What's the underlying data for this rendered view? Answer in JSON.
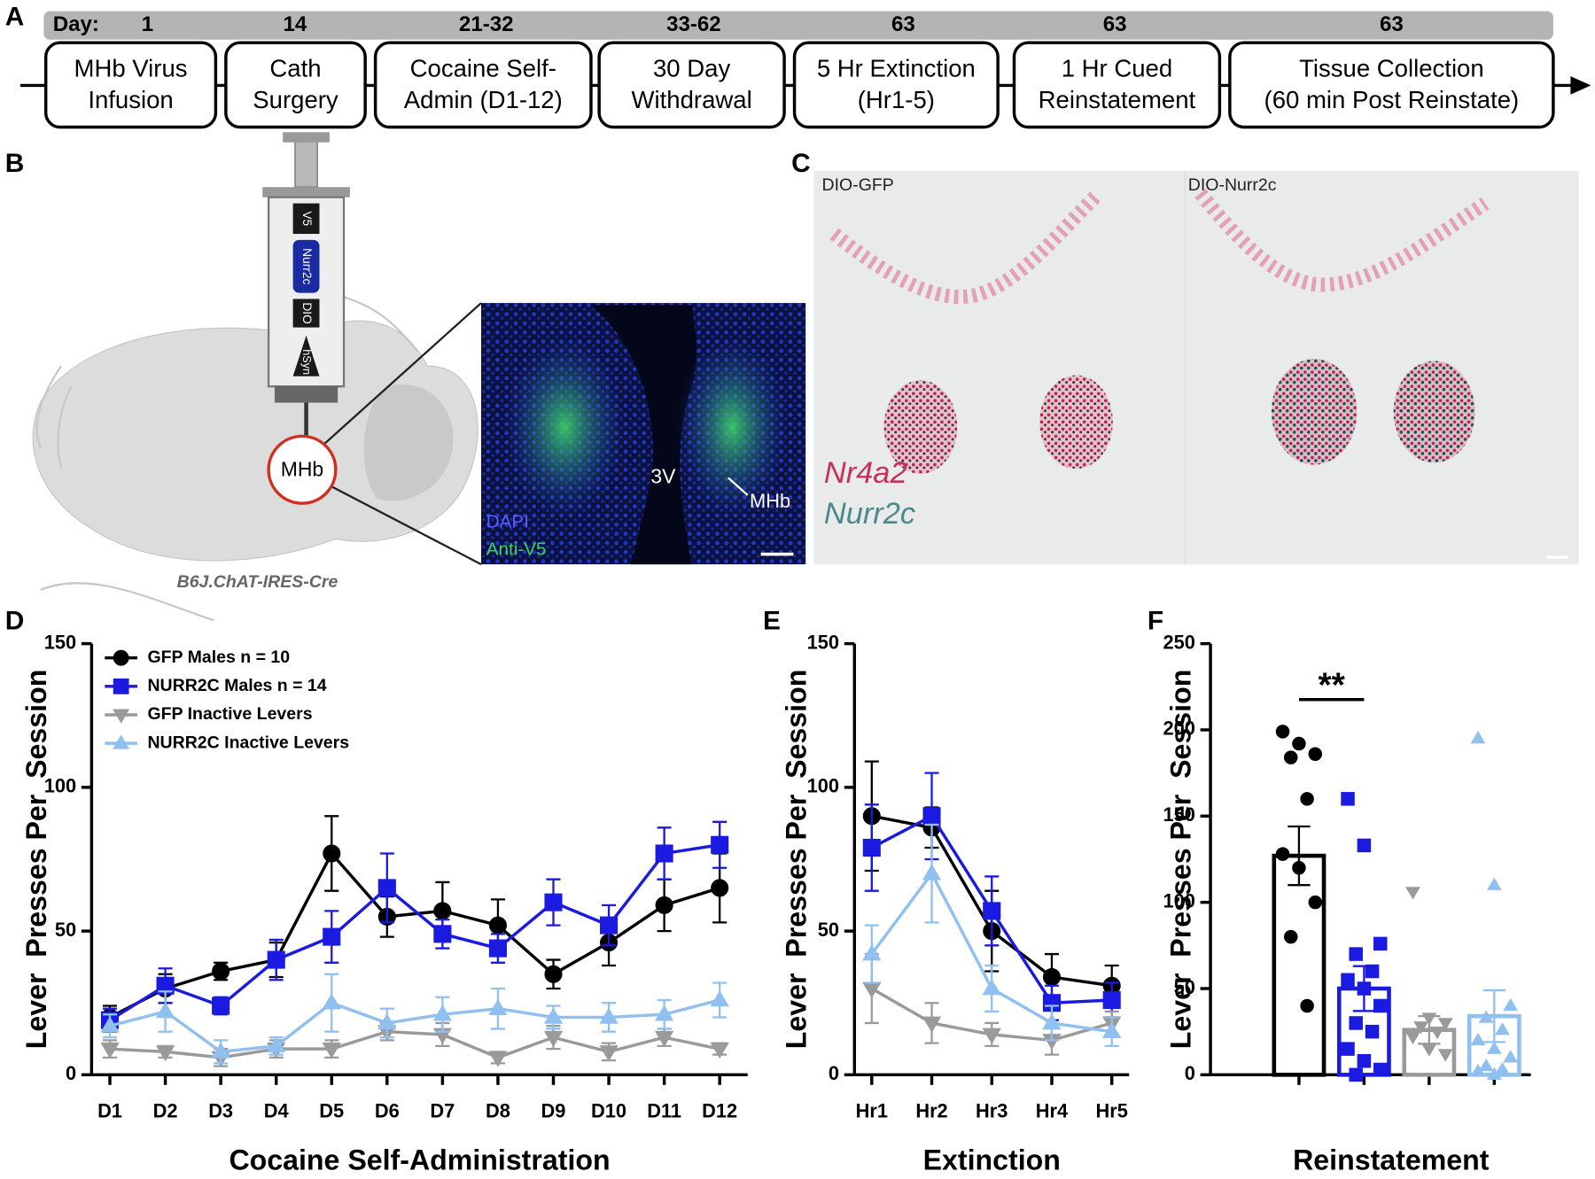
{
  "figure": {
    "panel_labels": [
      "A",
      "B",
      "C",
      "D",
      "E",
      "F"
    ]
  },
  "timeline": {
    "day_label": "Day:",
    "steps": [
      {
        "day": "1",
        "label": [
          "MHb Virus",
          "Infusion"
        ]
      },
      {
        "day": "14",
        "label": [
          "Cath",
          "Surgery"
        ]
      },
      {
        "day": "21-32",
        "label": [
          "Cocaine Self-",
          "Admin (D1-12)"
        ]
      },
      {
        "day": "33-62",
        "label": [
          "30 Day",
          "Withdrawal"
        ]
      },
      {
        "day": "63",
        "label": [
          "5 Hr Extinction",
          "(Hr1-5)"
        ]
      },
      {
        "day": "63",
        "label": [
          "1 Hr Cued",
          "Reinstatement"
        ]
      },
      {
        "day": "63",
        "label": [
          "Tissue Collection",
          "(60 min Post Reinstate)"
        ]
      }
    ]
  },
  "panel_b": {
    "syringe_labels": [
      "V5",
      "Nurr2c",
      "DIO",
      "hSyn"
    ],
    "region": "MHb",
    "strain": "B6J.ChAT-IRES-Cre",
    "micrograph": {
      "ventricle": "3V",
      "region": "MHb",
      "stains": [
        "DAPI",
        "Anti-V5"
      ]
    }
  },
  "panel_c": {
    "sections": [
      "DIO-GFP",
      "DIO-Nurr2c"
    ],
    "probes": [
      "Nr4a2",
      "Nurr2c"
    ]
  },
  "chart_data": [
    {
      "type": "line",
      "x_title": "Cocaine Self-Administration",
      "y_title": "Lever  Presses Per  Session",
      "categories": [
        "D1",
        "D2",
        "D3",
        "D4",
        "D5",
        "D6",
        "D7",
        "D8",
        "D9",
        "D10",
        "D11",
        "D12"
      ],
      "ylim": [
        0,
        150
      ],
      "yticks": [
        0,
        50,
        100,
        150
      ],
      "legend": "top-left",
      "series": [
        {
          "name": "GFP Males n = 10",
          "color": "#000000",
          "marker": "circle",
          "values": [
            20,
            30,
            36,
            40,
            77,
            55,
            57,
            52,
            35,
            46,
            59,
            65
          ],
          "errors": [
            4,
            5,
            3,
            6,
            13,
            7,
            10,
            9,
            5,
            8,
            9,
            12
          ]
        },
        {
          "name": "NURR2C Males n = 14",
          "color": "#1a1ae0",
          "marker": "square",
          "values": [
            19,
            31,
            24,
            40,
            48,
            65,
            49,
            44,
            60,
            52,
            77,
            80
          ],
          "errors": [
            4,
            6,
            3,
            7,
            9,
            12,
            5,
            5,
            8,
            7,
            9,
            8
          ]
        },
        {
          "name": "GFP Inactive Levers",
          "color": "#9a9a9a",
          "marker": "triangle-down",
          "values": [
            9,
            8,
            6,
            9,
            9,
            15,
            14,
            6,
            13,
            8,
            13,
            9
          ],
          "errors": [
            3,
            2,
            3,
            3,
            3,
            3,
            4,
            2,
            4,
            3,
            3,
            2
          ]
        },
        {
          "name": "NURR2C Inactive Levers",
          "color": "#8fc0f0",
          "marker": "triangle-up",
          "values": [
            17,
            22,
            8,
            10,
            25,
            18,
            21,
            23,
            20,
            20,
            21,
            26
          ],
          "errors": [
            4,
            7,
            4,
            3,
            10,
            5,
            6,
            7,
            4,
            5,
            5,
            6
          ]
        }
      ]
    },
    {
      "type": "line",
      "x_title": "Extinction",
      "y_title": "Lever  Presses Per  Session",
      "categories": [
        "Hr1",
        "Hr2",
        "Hr3",
        "Hr4",
        "Hr5"
      ],
      "ylim": [
        0,
        150
      ],
      "yticks": [
        0,
        50,
        100,
        150
      ],
      "series": [
        {
          "color": "#000000",
          "marker": "circle",
          "values": [
            90,
            86,
            50,
            34,
            31
          ],
          "errors": [
            19,
            7,
            14,
            8,
            7
          ]
        },
        {
          "color": "#1a1ae0",
          "marker": "square",
          "values": [
            79,
            90,
            57,
            25,
            26
          ],
          "errors": [
            15,
            15,
            12,
            6,
            6
          ]
        },
        {
          "color": "#9a9a9a",
          "marker": "triangle-down",
          "values": [
            30,
            18,
            14,
            12,
            18
          ],
          "errors": [
            12,
            7,
            4,
            5,
            4
          ]
        },
        {
          "color": "#8fc0f0",
          "marker": "triangle-up",
          "values": [
            42,
            70,
            30,
            18,
            15
          ],
          "errors": [
            10,
            17,
            8,
            6,
            5
          ]
        }
      ]
    },
    {
      "type": "bar",
      "x_title": "Reinstatement",
      "y_title": "Lever  Presses Per  Session",
      "categories": [
        null,
        null,
        null,
        null
      ],
      "ylim": [
        0,
        250
      ],
      "yticks": [
        0,
        50,
        100,
        150,
        200,
        250
      ],
      "values": [
        127,
        50,
        26,
        34
      ],
      "errors": [
        17,
        13,
        8,
        15
      ],
      "colors": [
        "#000000",
        "#1a1ae0",
        "#9a9a9a",
        "#8fc0f0"
      ],
      "markers": [
        "circle",
        "square",
        "triangle-down",
        "triangle-up"
      ],
      "points": [
        [
          199,
          192,
          186,
          184,
          160,
          128,
          120,
          100,
          80,
          40
        ],
        [
          160,
          133,
          76,
          70,
          60,
          55,
          50,
          40,
          30,
          25,
          15,
          8,
          3,
          0
        ],
        [
          106,
          33,
          30,
          28,
          25,
          22,
          15,
          12
        ],
        [
          195,
          110,
          40,
          33,
          26,
          20,
          15,
          10,
          5,
          3,
          2,
          0
        ]
      ],
      "annotation": "**"
    }
  ]
}
